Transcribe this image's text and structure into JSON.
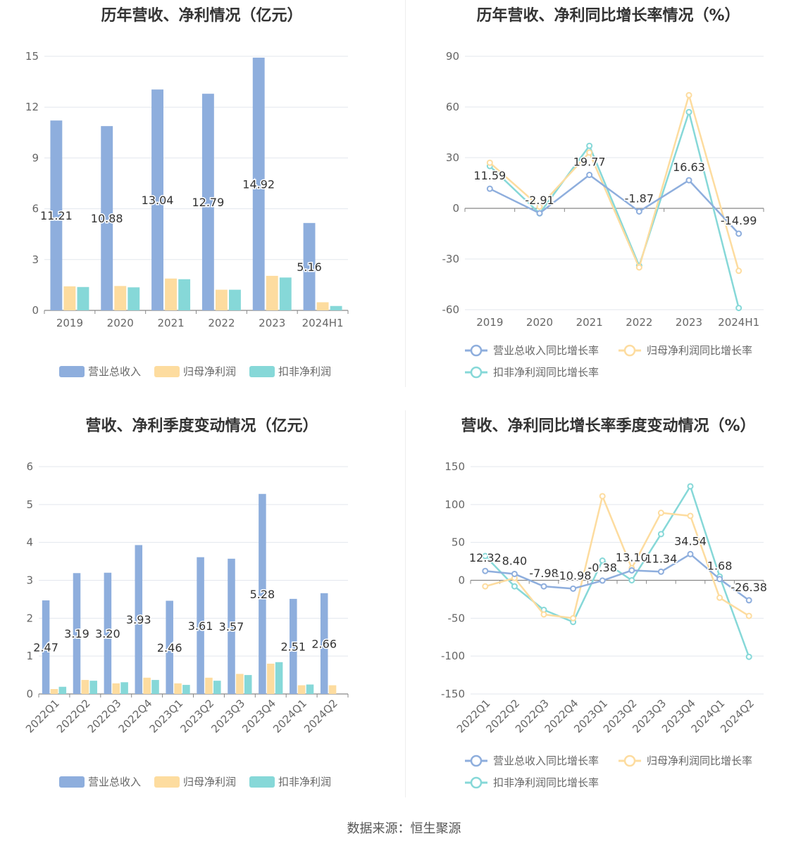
{
  "panels": [
    {
      "title": "历年营收、净利情况（亿元）",
      "legend": [
        "营业总收入",
        "归母净利润",
        "扣非净利润"
      ]
    },
    {
      "title": "历年营收、净利同比增长率情况（%）",
      "legend": [
        "营业总收入同比增长率",
        "归母净利润同比增长率",
        "扣非净利润同比增长率"
      ]
    },
    {
      "title": "营收、净利季度变动情况（亿元）",
      "legend": [
        "营业总收入",
        "归母净利润",
        "扣非净利润"
      ]
    },
    {
      "title": "营收、净利同比增长率季度变动情况（%）",
      "legend": [
        "营业总收入同比增长率",
        "归母净利润同比增长率",
        "扣非净利润同比增长率"
      ]
    }
  ],
  "source": "数据来源：恒生聚源",
  "colors": {
    "revenue": "#8eaedd",
    "net_profit": "#fddc9f",
    "deducted_profit": "#86d8d8",
    "grid": "#e3e7ee",
    "axis_label": "#666666"
  },
  "chart_data": [
    {
      "type": "bar",
      "categories": [
        "2019",
        "2020",
        "2021",
        "2022",
        "2023",
        "2024H1"
      ],
      "series": [
        {
          "name": "营业总收入",
          "values": [
            11.21,
            10.88,
            13.04,
            12.79,
            14.92,
            5.16
          ],
          "labels": [
            "11.21",
            "10.88",
            "13.04",
            "12.79",
            "14.92",
            "5.16"
          ]
        },
        {
          "name": "归母净利润",
          "values": [
            1.42,
            1.44,
            1.88,
            1.22,
            2.04,
            0.48
          ]
        },
        {
          "name": "扣非净利润",
          "values": [
            1.38,
            1.36,
            1.84,
            1.22,
            1.94,
            0.26
          ]
        }
      ],
      "yticks": [
        "0",
        "3",
        "6",
        "9",
        "12",
        "15"
      ],
      "ylim": [
        0,
        15
      ],
      "grid": true,
      "legend_position": "bottom"
    },
    {
      "type": "line",
      "categories": [
        "2019",
        "2020",
        "2021",
        "2022",
        "2023",
        "2024H1"
      ],
      "series": [
        {
          "name": "营业总收入同比增长率",
          "values": [
            11.59,
            -2.91,
            19.77,
            -1.87,
            16.63,
            -14.99
          ],
          "labels": [
            "11.59",
            "-2.91",
            "19.77",
            "-1.87",
            "16.63",
            "-14.99"
          ]
        },
        {
          "name": "归母净利润同比增长率",
          "values": [
            27,
            1,
            33,
            -35,
            67,
            -37
          ]
        },
        {
          "name": "扣非净利润同比增长率",
          "values": [
            25,
            -3,
            37,
            -34,
            57,
            -59
          ]
        }
      ],
      "yticks": [
        "-60",
        "-30",
        "0",
        "30",
        "60",
        "90"
      ],
      "ylim": [
        -60,
        90
      ],
      "grid": true,
      "legend_position": "bottom"
    },
    {
      "type": "bar",
      "categories": [
        "2022Q1",
        "2022Q2",
        "2022Q3",
        "2022Q4",
        "2023Q1",
        "2023Q2",
        "2023Q3",
        "2023Q4",
        "2024Q1",
        "2024Q2"
      ],
      "series": [
        {
          "name": "营业总收入",
          "values": [
            2.47,
            3.19,
            3.2,
            3.93,
            2.46,
            3.61,
            3.57,
            5.28,
            2.51,
            2.66
          ],
          "labels": [
            "2.47",
            "3.19",
            "3.20",
            "3.93",
            "2.46",
            "3.61",
            "3.57",
            "5.28",
            "2.51",
            "2.66"
          ]
        },
        {
          "name": "归母净利润",
          "values": [
            0.13,
            0.37,
            0.28,
            0.43,
            0.28,
            0.43,
            0.53,
            0.8,
            0.23,
            0.23
          ]
        },
        {
          "name": "扣非净利润",
          "values": [
            0.19,
            0.35,
            0.31,
            0.37,
            0.24,
            0.35,
            0.5,
            0.84,
            0.25,
            0.0
          ]
        }
      ],
      "yticks": [
        "0",
        "1",
        "2",
        "3",
        "4",
        "5",
        "6"
      ],
      "ylim": [
        0,
        6
      ],
      "grid": true,
      "legend_position": "bottom"
    },
    {
      "type": "line",
      "categories": [
        "2022Q1",
        "2022Q2",
        "2022Q3",
        "2022Q4",
        "2023Q1",
        "2023Q2",
        "2023Q3",
        "2023Q4",
        "2024Q1",
        "2024Q2"
      ],
      "series": [
        {
          "name": "营业总收入同比增长率",
          "values": [
            12.32,
            8.4,
            -7.98,
            -10.98,
            -0.38,
            13.1,
            11.34,
            34.54,
            1.68,
            -26.38
          ],
          "labels": [
            "12.32",
            "8.40",
            "-7.98",
            "-10.98",
            "-0.38",
            "13.10",
            "11.34",
            "34.54",
            "1.68",
            "-26.38"
          ]
        },
        {
          "name": "归母净利润同比增长率",
          "values": [
            -8,
            3,
            -45,
            -50,
            111,
            16,
            89,
            85,
            -23,
            -47
          ]
        },
        {
          "name": "扣非净利润同比增长率",
          "values": [
            32,
            -8,
            -39,
            -55,
            26,
            0,
            61,
            124,
            5,
            -101
          ]
        }
      ],
      "yticks": [
        "-150",
        "-100",
        "-50",
        "0",
        "50",
        "100",
        "150"
      ],
      "ylim": [
        -150,
        150
      ],
      "grid": true,
      "legend_position": "bottom"
    }
  ]
}
